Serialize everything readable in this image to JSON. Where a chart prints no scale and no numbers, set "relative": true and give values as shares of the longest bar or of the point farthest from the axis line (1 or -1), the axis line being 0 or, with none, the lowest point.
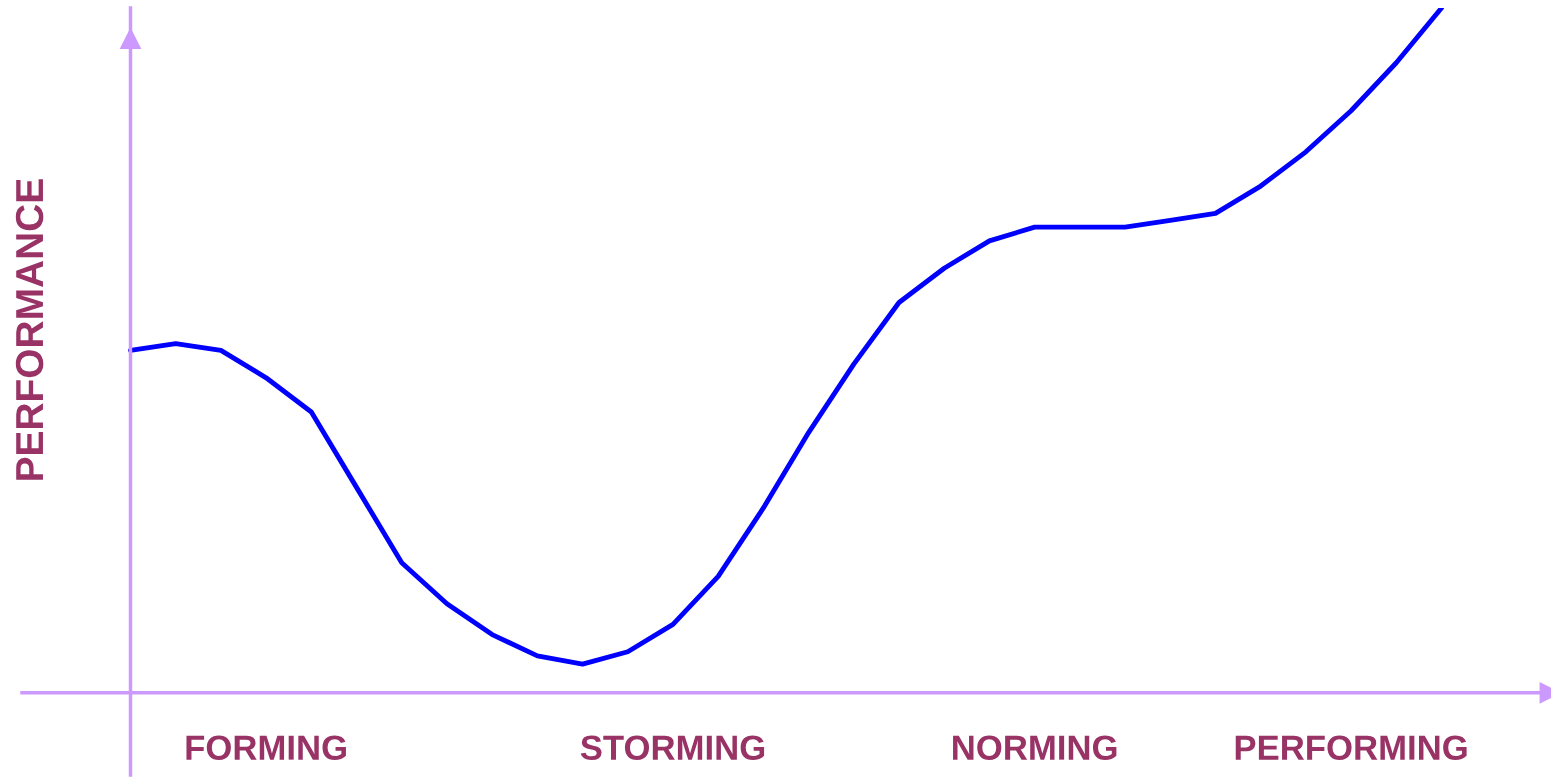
{
  "chart_data": {
    "type": "line",
    "ylabel": "PERFORMANCE",
    "relative": true,
    "line_style": "solid",
    "categories": [
      null,
      null,
      null,
      "FORMING",
      null,
      null,
      null,
      null,
      null,
      null,
      null,
      null,
      "STORMING",
      null,
      null,
      null,
      null,
      null,
      null,
      null,
      "NORMING",
      null,
      null,
      null,
      null,
      null,
      null,
      "PERFORMING",
      null,
      null
    ],
    "series": [
      {
        "color": "#0000ff",
        "values": [
          0.5,
          0.51,
          0.5,
          0.46,
          0.41,
          0.3,
          0.19,
          0.13,
          0.085,
          0.054,
          0.042,
          0.06,
          0.1,
          0.17,
          0.27,
          0.38,
          0.48,
          0.57,
          0.62,
          0.66,
          0.68,
          0.68,
          0.68,
          0.69,
          0.7,
          0.74,
          0.79,
          0.85,
          0.92,
          1.0
        ]
      }
    ]
  }
}
